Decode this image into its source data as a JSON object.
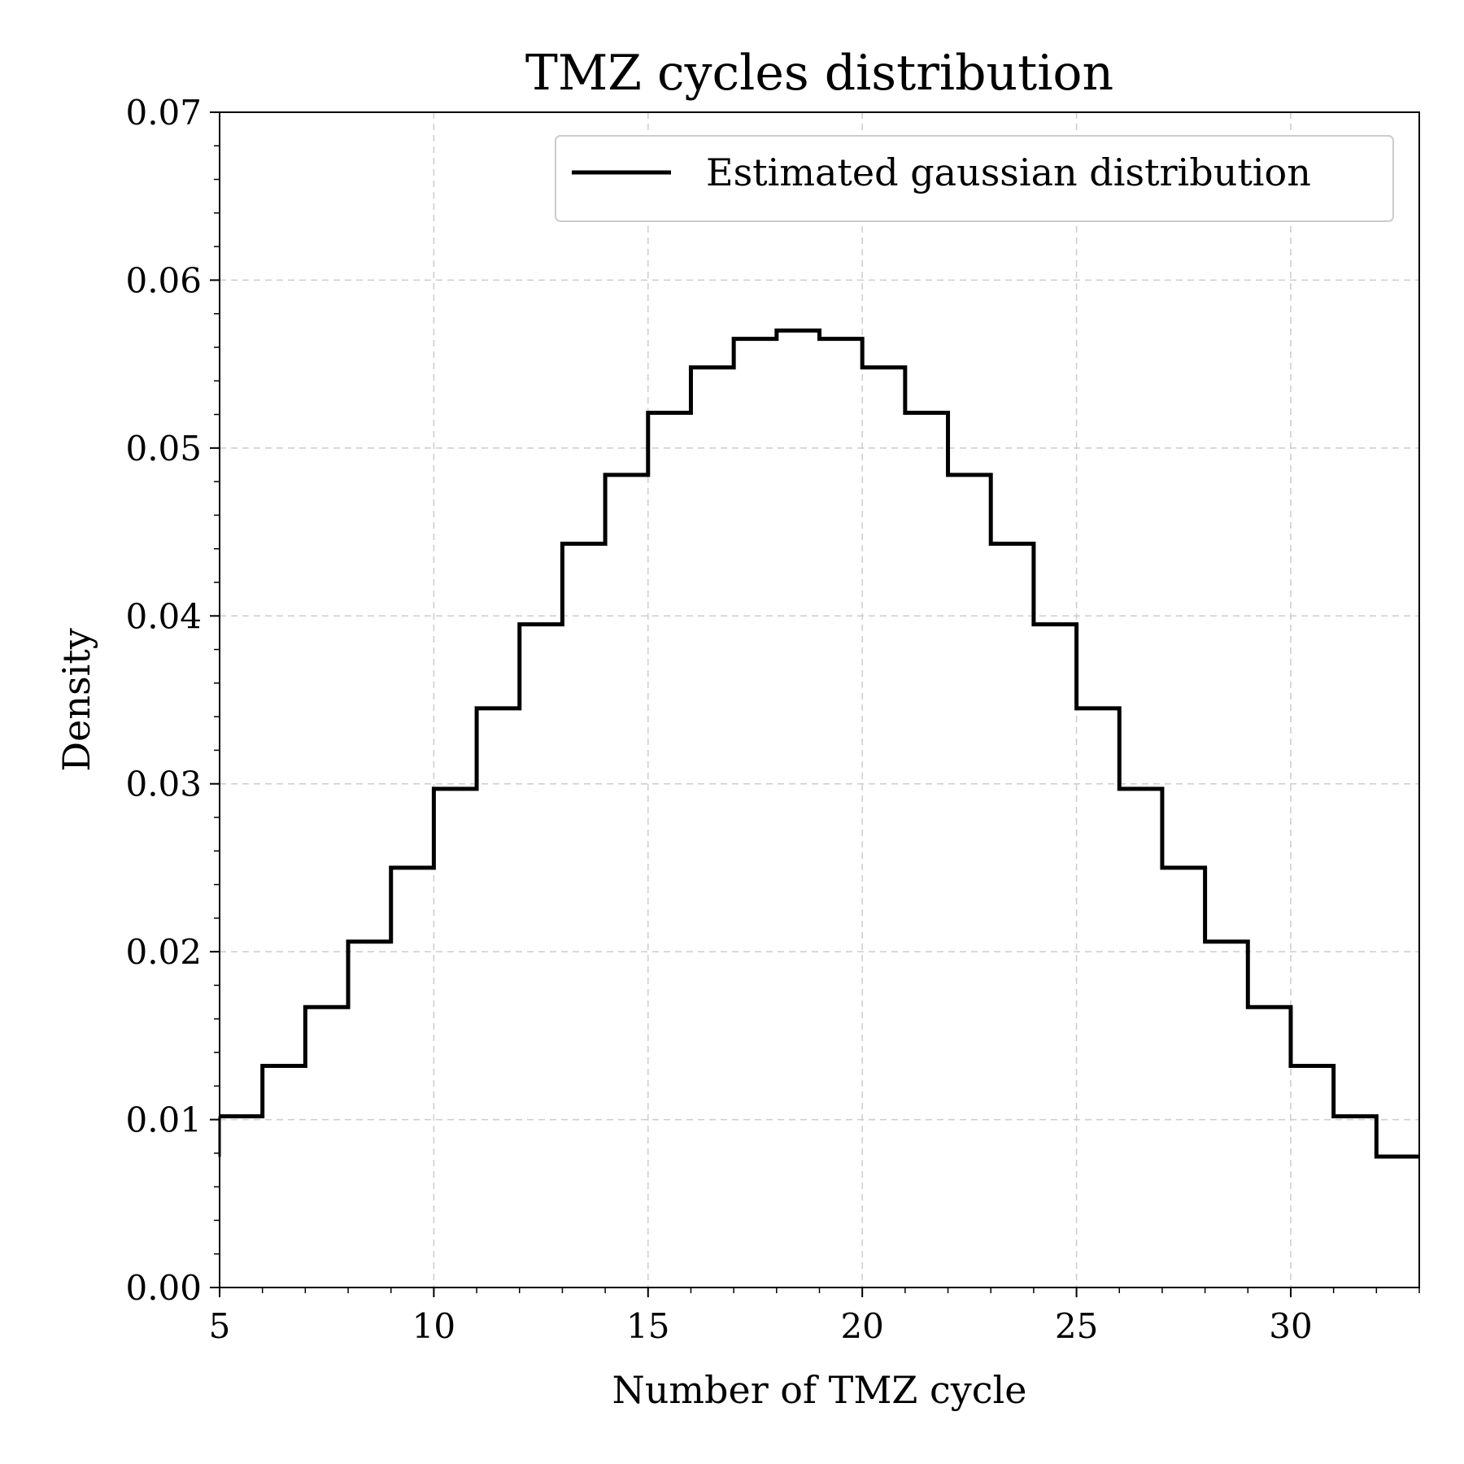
{
  "chart_data": {
    "type": "line",
    "style": "step",
    "title": "TMZ cycles distribution",
    "xlabel": "Number of TMZ cycle",
    "ylabel": "Density",
    "xlim": [
      5,
      33
    ],
    "ylim": [
      0,
      0.07
    ],
    "x_ticks": [
      5,
      10,
      15,
      20,
      25,
      30
    ],
    "y_ticks": [
      0.0,
      0.01,
      0.02,
      0.03,
      0.04,
      0.05,
      0.06,
      0.07
    ],
    "y_tick_labels": [
      "0.00",
      "0.01",
      "0.02",
      "0.03",
      "0.04",
      "0.05",
      "0.06",
      "0.07"
    ],
    "grid": true,
    "legend_position": "top-right",
    "series": [
      {
        "name": "Estimated gaussian distribution",
        "color": "#000000",
        "bin_edges": [
          5,
          6,
          7,
          8,
          9,
          10,
          11,
          12,
          13,
          14,
          15,
          16,
          17,
          18,
          19,
          20,
          21,
          22,
          23,
          24,
          25,
          26,
          27,
          28,
          29,
          30,
          31,
          32,
          33
        ],
        "values": [
          0.0102,
          0.0132,
          0.0167,
          0.0206,
          0.025,
          0.0297,
          0.0345,
          0.0395,
          0.0443,
          0.0484,
          0.0521,
          0.0548,
          0.0565,
          0.057,
          0.0565,
          0.0548,
          0.0521,
          0.0484,
          0.0443,
          0.0395,
          0.0345,
          0.0297,
          0.025,
          0.0206,
          0.0167,
          0.0132,
          0.0102,
          0.0078
        ]
      }
    ]
  }
}
